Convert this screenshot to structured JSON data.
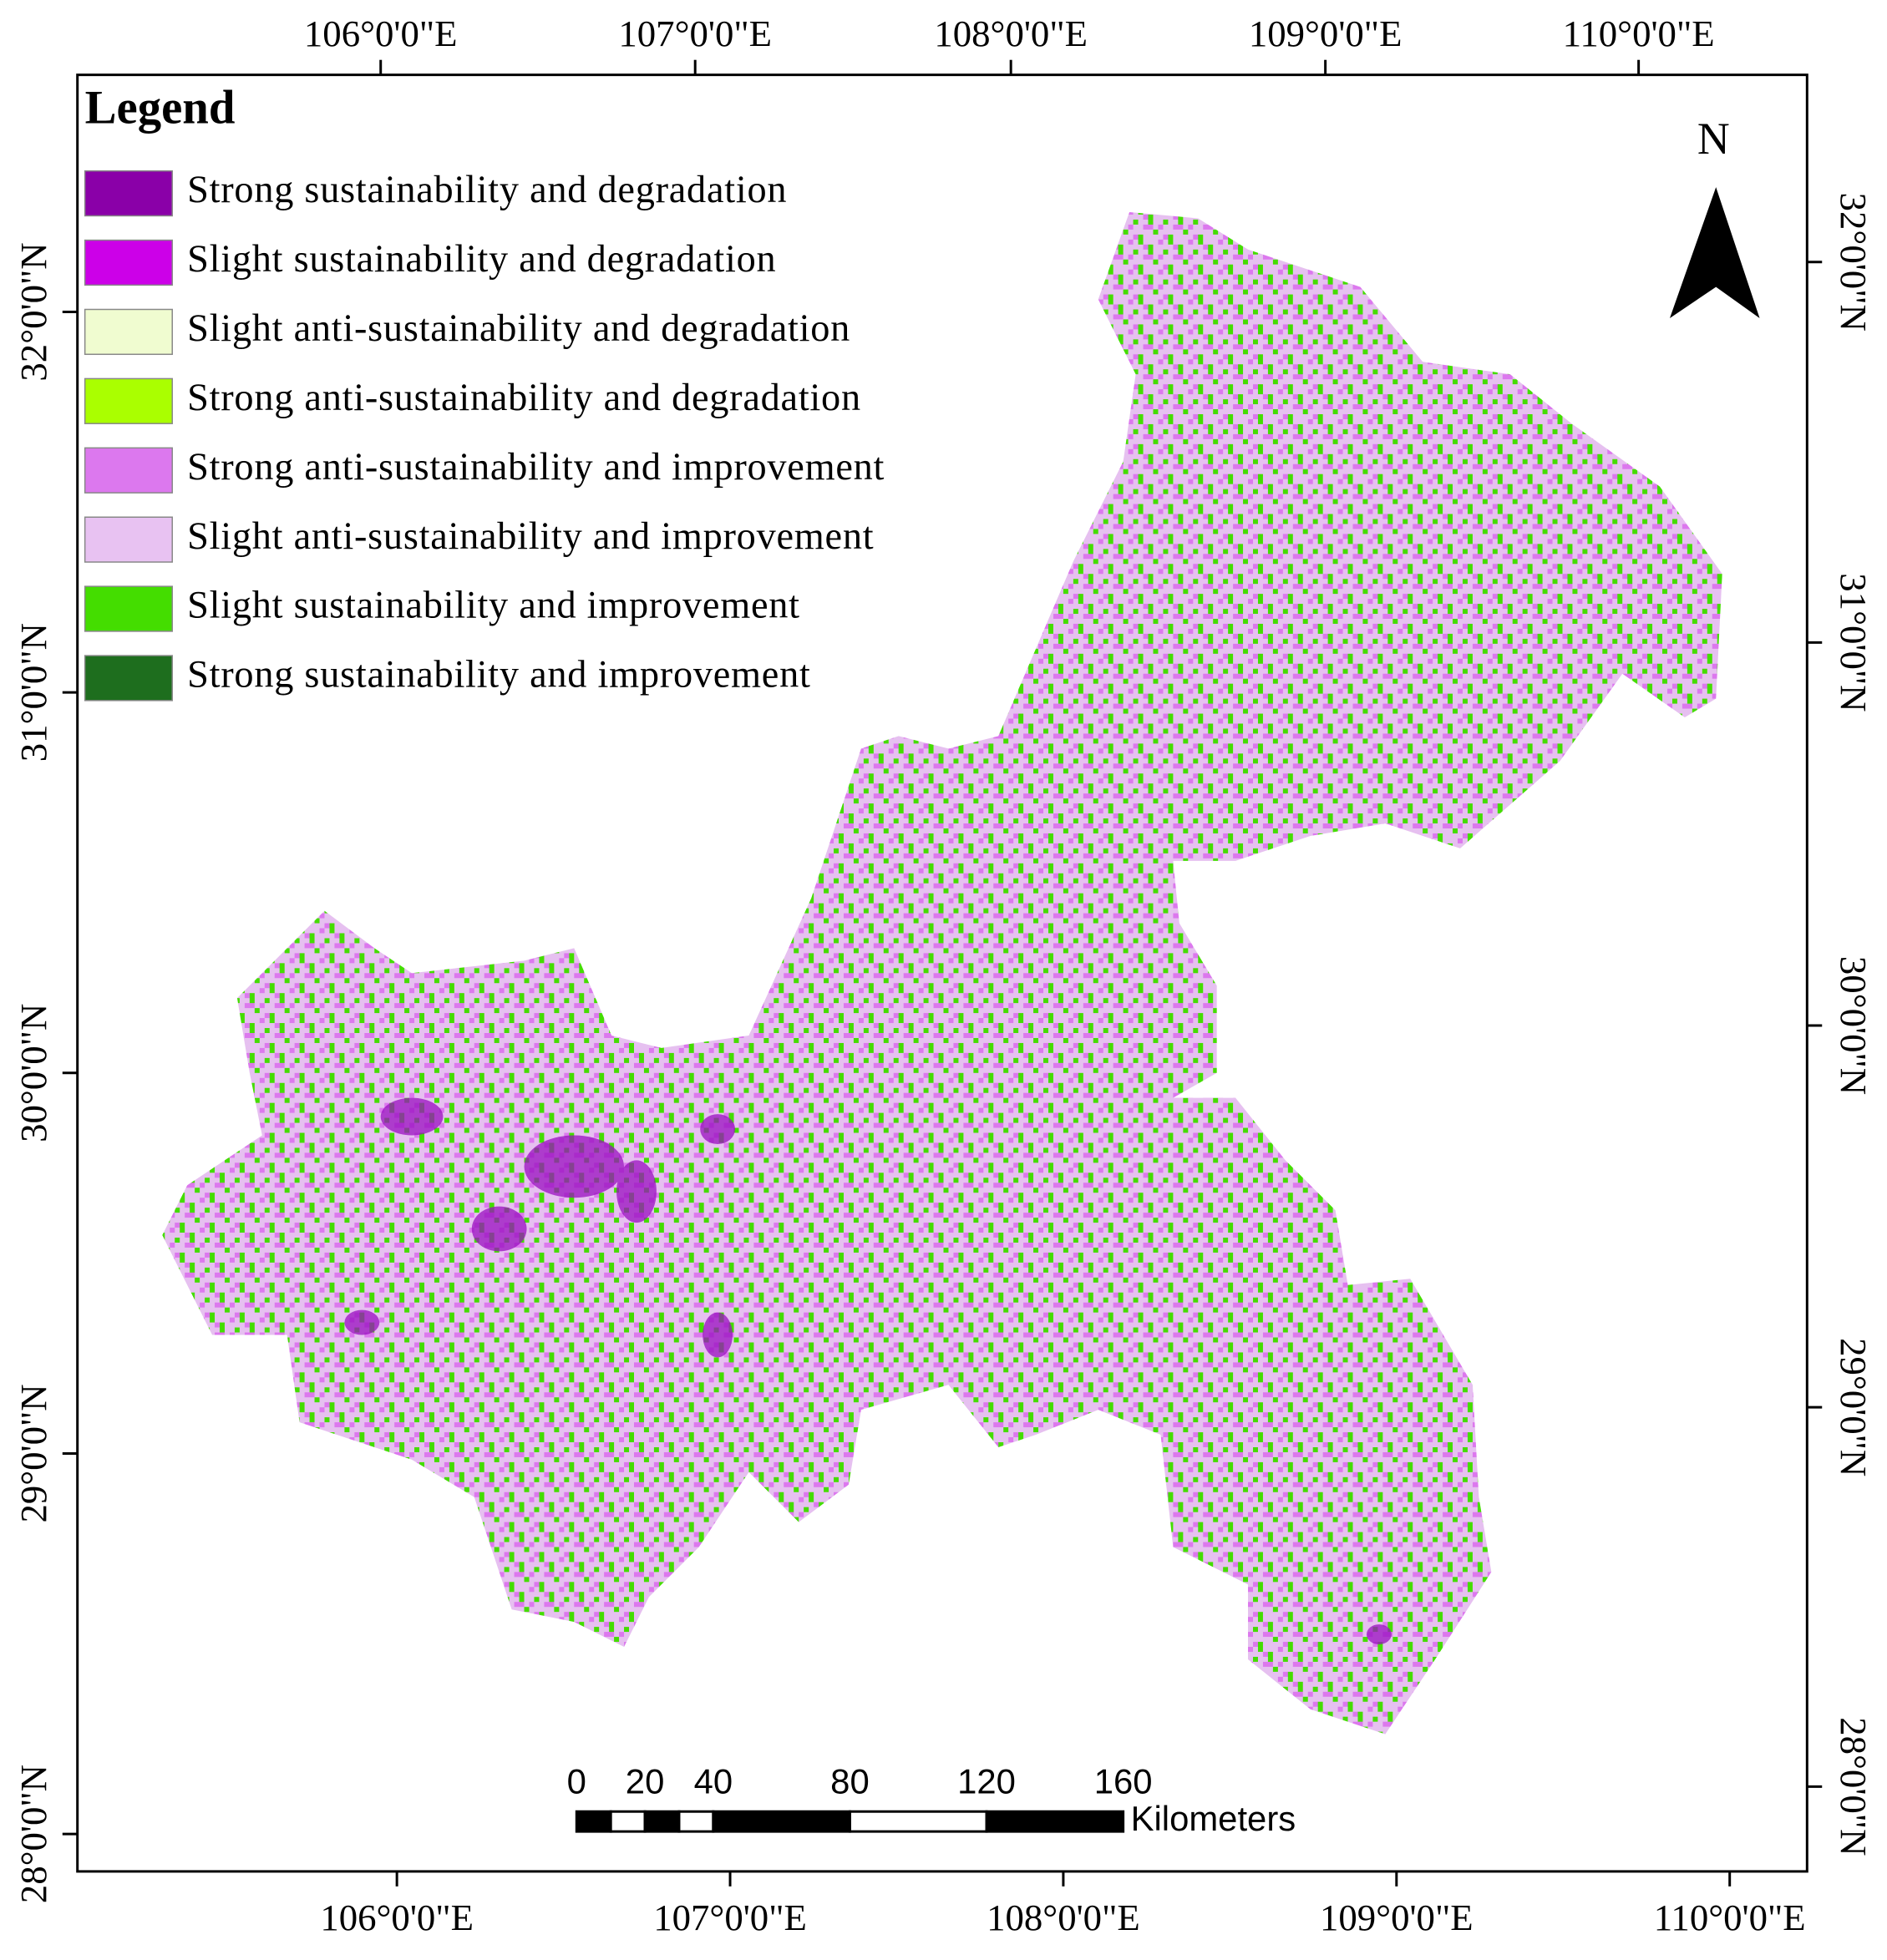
{
  "map": {
    "legend_title": "Legend",
    "legend": [
      {
        "name": "Strong sustainability and degradation",
        "color": "#8a00a8"
      },
      {
        "name": "Slight sustainability and degradation",
        "color": "#cc00e8"
      },
      {
        "name": "Slight anti-sustainability and degradation",
        "color": "#f0fcd0"
      },
      {
        "name": "Strong anti-sustainability and degradation",
        "color": "#aaff00"
      },
      {
        "name": "Strong anti-sustainability and improvement",
        "color": "#dc78ee"
      },
      {
        "name": "Slight anti-sustainability and improvement",
        "color": "#e8c2f2"
      },
      {
        "name": "Slight sustainability and improvement",
        "color": "#44dd00"
      },
      {
        "name": "Strong sustainability and improvement",
        "color": "#1e6e1e"
      }
    ],
    "north": "N",
    "top_labels": [
      "106°0'0\"E",
      "107°0'0\"E",
      "108°0'0\"E",
      "109°0'0\"E",
      "110°0'0\"E"
    ],
    "bottom_labels": [
      "106°0'0\"E",
      "107°0'0\"E",
      "108°0'0\"E",
      "109°0'0\"E",
      "110°0'0\"E"
    ],
    "left_labels": [
      "32°0'0\"N",
      "31°0'0\"N",
      "30°0'0\"N",
      "29°0'0\"N",
      "28°0'0\"N"
    ],
    "right_labels": [
      "32°0'0\"N",
      "31°0'0\"N",
      "30°0'0\"N",
      "29°0'0\"N",
      "28°0'0\"N"
    ],
    "scale_bar": {
      "ticks": [
        0,
        20,
        40,
        80,
        120,
        160
      ],
      "unit": "Kilometers"
    }
  }
}
